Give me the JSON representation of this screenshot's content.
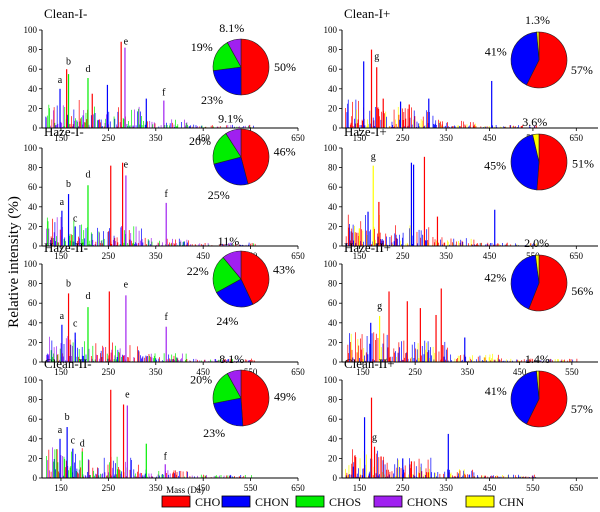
{
  "figure": {
    "y_axis_label": "Relative intensity (%)",
    "x_axis_label": "Mass (Da)",
    "legend": [
      {
        "label": "CHO",
        "color": "#ff0000"
      },
      {
        "label": "CHON",
        "color": "#0000ff"
      },
      {
        "label": "CHOS",
        "color": "#00ee00"
      },
      {
        "label": "CHONS",
        "color": "#a020f0"
      },
      {
        "label": "CHN",
        "color": "#ffff00"
      }
    ]
  },
  "chart_data": [
    {
      "type": "bar",
      "title": "Clean-I-",
      "ylim": [
        0,
        100
      ],
      "yticks": [
        0,
        20,
        40,
        60,
        80,
        100
      ],
      "xlim": [
        110,
        650
      ],
      "xticks": [
        150,
        250,
        350,
        450,
        550,
        650
      ],
      "peak_labels": [
        {
          "text": "a",
          "x": 148,
          "y": 44
        },
        {
          "text": "b",
          "x": 166,
          "y": 63
        },
        {
          "text": "d",
          "x": 207,
          "y": 55
        },
        {
          "text": "e",
          "x": 287,
          "y": 83
        },
        {
          "text": "f",
          "x": 367,
          "y": 31
        }
      ],
      "major_peaks": [
        {
          "x": 148,
          "y": 40,
          "class": "CHON"
        },
        {
          "x": 162,
          "y": 60,
          "class": "CHO"
        },
        {
          "x": 166,
          "y": 55,
          "class": "CHOS"
        },
        {
          "x": 207,
          "y": 51,
          "class": "CHOS"
        },
        {
          "x": 216,
          "y": 35,
          "class": "CHO"
        },
        {
          "x": 248,
          "y": 44,
          "class": "CHON"
        },
        {
          "x": 277,
          "y": 88,
          "class": "CHO"
        },
        {
          "x": 285,
          "y": 82,
          "class": "CHONS"
        },
        {
          "x": 330,
          "y": 30,
          "class": "CHON"
        },
        {
          "x": 367,
          "y": 28,
          "class": "CHONS"
        }
      ],
      "pie": [
        {
          "class": "CHO",
          "value": 50,
          "label": "50%"
        },
        {
          "class": "CHON",
          "value": 23,
          "label": "23%"
        },
        {
          "class": "CHOS",
          "value": 19,
          "label": "19%"
        },
        {
          "class": "CHONS",
          "value": 8.1,
          "label": "8.1%"
        }
      ]
    },
    {
      "type": "bar",
      "title": "Clean-I+",
      "ylim": [
        0,
        100
      ],
      "yticks": [
        0,
        20,
        40,
        60,
        80,
        100
      ],
      "xlim": [
        110,
        700
      ],
      "xticks": [
        150,
        250,
        350,
        450,
        550,
        650
      ],
      "peak_labels": [
        {
          "text": "g",
          "x": 190,
          "y": 68
        }
      ],
      "major_peaks": [
        {
          "x": 160,
          "y": 68,
          "class": "CHON"
        },
        {
          "x": 178,
          "y": 80,
          "class": "CHO"
        },
        {
          "x": 190,
          "y": 62,
          "class": "CHO"
        },
        {
          "x": 205,
          "y": 30,
          "class": "CHO"
        },
        {
          "x": 245,
          "y": 27,
          "class": "CHON"
        },
        {
          "x": 265,
          "y": 24,
          "class": "CHO"
        },
        {
          "x": 310,
          "y": 30,
          "class": "CHON"
        },
        {
          "x": 455,
          "y": 48,
          "class": "CHON"
        }
      ],
      "pie": [
        {
          "class": "CHO",
          "value": 57,
          "label": "57%"
        },
        {
          "class": "CHON",
          "value": 41,
          "label": "41%"
        },
        {
          "class": "CHN",
          "value": 1.3,
          "label": "1.3%"
        }
      ]
    },
    {
      "type": "bar",
      "title": "Haze-I-",
      "ylim": [
        0,
        100
      ],
      "yticks": [
        0,
        20,
        40,
        60,
        80,
        100
      ],
      "xlim": [
        110,
        650
      ],
      "xticks": [
        150,
        250,
        350,
        450,
        550,
        650
      ],
      "peak_labels": [
        {
          "text": "a",
          "x": 152,
          "y": 40
        },
        {
          "text": "b",
          "x": 166,
          "y": 58
        },
        {
          "text": "c",
          "x": 180,
          "y": 23
        },
        {
          "text": "d",
          "x": 207,
          "y": 68
        },
        {
          "text": "e",
          "x": 287,
          "y": 78
        },
        {
          "text": "f",
          "x": 372,
          "y": 48
        }
      ],
      "major_peaks": [
        {
          "x": 152,
          "y": 36,
          "class": "CHON"
        },
        {
          "x": 166,
          "y": 53,
          "class": "CHON"
        },
        {
          "x": 180,
          "y": 20,
          "class": "CHON"
        },
        {
          "x": 207,
          "y": 62,
          "class": "CHOS"
        },
        {
          "x": 255,
          "y": 82,
          "class": "CHO"
        },
        {
          "x": 280,
          "y": 85,
          "class": "CHO"
        },
        {
          "x": 287,
          "y": 72,
          "class": "CHONS"
        },
        {
          "x": 372,
          "y": 44,
          "class": "CHONS"
        }
      ],
      "pie": [
        {
          "class": "CHO",
          "value": 46,
          "label": "46%"
        },
        {
          "class": "CHON",
          "value": 25,
          "label": "25%"
        },
        {
          "class": "CHOS",
          "value": 20,
          "label": "20%"
        },
        {
          "class": "CHONS",
          "value": 9.1,
          "label": "9.1%"
        }
      ]
    },
    {
      "type": "bar",
      "title": "Haze-I+",
      "ylim": [
        0,
        100
      ],
      "yticks": [
        0,
        20,
        40,
        60,
        80,
        100
      ],
      "xlim": [
        110,
        700
      ],
      "xticks": [
        150,
        250,
        350,
        450,
        550,
        650
      ],
      "peak_labels": [
        {
          "text": "g",
          "x": 182,
          "y": 86
        }
      ],
      "major_peaks": [
        {
          "x": 150,
          "y": 18,
          "class": "CHN"
        },
        {
          "x": 170,
          "y": 35,
          "class": "CHON"
        },
        {
          "x": 182,
          "y": 82,
          "class": "CHN"
        },
        {
          "x": 195,
          "y": 45,
          "class": "CHO"
        },
        {
          "x": 270,
          "y": 85,
          "class": "CHON"
        },
        {
          "x": 275,
          "y": 83,
          "class": "CHON"
        },
        {
          "x": 300,
          "y": 91,
          "class": "CHO"
        },
        {
          "x": 330,
          "y": 30,
          "class": "CHO"
        },
        {
          "x": 462,
          "y": 37,
          "class": "CHON"
        }
      ],
      "pie": [
        {
          "class": "CHO",
          "value": 51,
          "label": "51%"
        },
        {
          "class": "CHON",
          "value": 45,
          "label": "45%"
        },
        {
          "class": "CHN",
          "value": 3.6,
          "label": "3.6%"
        }
      ]
    },
    {
      "type": "bar",
      "title": "Haze-II-",
      "ylim": [
        0,
        100
      ],
      "yticks": [
        0,
        20,
        40,
        60,
        80,
        100
      ],
      "xlim": [
        110,
        650
      ],
      "xticks": [
        150,
        250,
        350,
        450,
        550,
        650
      ],
      "peak_labels": [
        {
          "text": "a",
          "x": 152,
          "y": 42
        },
        {
          "text": "b",
          "x": 166,
          "y": 75
        },
        {
          "text": "c",
          "x": 180,
          "y": 34
        },
        {
          "text": "d",
          "x": 207,
          "y": 62
        },
        {
          "text": "e",
          "x": 287,
          "y": 74
        },
        {
          "text": "f",
          "x": 372,
          "y": 41
        }
      ],
      "major_peaks": [
        {
          "x": 152,
          "y": 38,
          "class": "CHON"
        },
        {
          "x": 166,
          "y": 70,
          "class": "CHO"
        },
        {
          "x": 180,
          "y": 30,
          "class": "CHON"
        },
        {
          "x": 207,
          "y": 56,
          "class": "CHOS"
        },
        {
          "x": 252,
          "y": 72,
          "class": "CHO"
        },
        {
          "x": 287,
          "y": 68,
          "class": "CHONS"
        },
        {
          "x": 372,
          "y": 36,
          "class": "CHONS"
        }
      ],
      "pie": [
        {
          "class": "CHO",
          "value": 43,
          "label": "43%"
        },
        {
          "class": "CHON",
          "value": 24,
          "label": "24%"
        },
        {
          "class": "CHOS",
          "value": 22,
          "label": "22%"
        },
        {
          "class": "CHONS",
          "value": 11,
          "label": "11%"
        }
      ]
    },
    {
      "type": "bar",
      "title": "Haze-II+",
      "ylim": [
        0,
        100
      ],
      "yticks": [
        0,
        20,
        40,
        60,
        80,
        100
      ],
      "xlim": [
        110,
        600
      ],
      "xticks": [
        150,
        250,
        350,
        450,
        550
      ],
      "peak_labels": [
        {
          "text": "g",
          "x": 182,
          "y": 52
        }
      ],
      "major_peaks": [
        {
          "x": 165,
          "y": 40,
          "class": "CHON"
        },
        {
          "x": 182,
          "y": 47,
          "class": "CHN"
        },
        {
          "x": 200,
          "y": 72,
          "class": "CHO"
        },
        {
          "x": 235,
          "y": 62,
          "class": "CHO"
        },
        {
          "x": 260,
          "y": 55,
          "class": "CHO"
        },
        {
          "x": 290,
          "y": 48,
          "class": "CHO"
        },
        {
          "x": 300,
          "y": 75,
          "class": "CHO"
        },
        {
          "x": 345,
          "y": 25,
          "class": "CHON"
        }
      ],
      "pie": [
        {
          "class": "CHO",
          "value": 56,
          "label": "56%"
        },
        {
          "class": "CHON",
          "value": 42,
          "label": "42%"
        },
        {
          "class": "CHN",
          "value": 2.0,
          "label": "2.0%"
        }
      ]
    },
    {
      "type": "bar",
      "title": "Clean-II-",
      "ylim": [
        0,
        100
      ],
      "yticks": [
        0,
        20,
        40,
        60,
        80,
        100
      ],
      "xlim": [
        110,
        650
      ],
      "xticks": [
        150,
        250,
        350,
        450,
        550,
        650
      ],
      "peak_labels": [
        {
          "text": "a",
          "x": 148,
          "y": 44
        },
        {
          "text": "b",
          "x": 163,
          "y": 57
        },
        {
          "text": "c",
          "x": 175,
          "y": 33
        },
        {
          "text": "d",
          "x": 195,
          "y": 30
        },
        {
          "text": "e",
          "x": 290,
          "y": 80
        },
        {
          "text": "f",
          "x": 370,
          "y": 17
        }
      ],
      "major_peaks": [
        {
          "x": 148,
          "y": 40,
          "class": "CHON"
        },
        {
          "x": 163,
          "y": 52,
          "class": "CHON"
        },
        {
          "x": 175,
          "y": 30,
          "class": "CHON"
        },
        {
          "x": 195,
          "y": 27,
          "class": "CHOS"
        },
        {
          "x": 255,
          "y": 90,
          "class": "CHO"
        },
        {
          "x": 282,
          "y": 75,
          "class": "CHO"
        },
        {
          "x": 290,
          "y": 74,
          "class": "CHONS"
        },
        {
          "x": 330,
          "y": 35,
          "class": "CHOS"
        },
        {
          "x": 370,
          "y": 14,
          "class": "CHONS"
        }
      ],
      "pie": [
        {
          "class": "CHO",
          "value": 49,
          "label": "49%"
        },
        {
          "class": "CHON",
          "value": 23,
          "label": "23%"
        },
        {
          "class": "CHOS",
          "value": 20,
          "label": "20%"
        },
        {
          "class": "CHONS",
          "value": 8.1,
          "label": "8.1%"
        }
      ]
    },
    {
      "type": "bar",
      "title": "Clean-II+",
      "ylim": [
        0,
        100
      ],
      "yticks": [
        0,
        20,
        40,
        60,
        80,
        100
      ],
      "xlim": [
        110,
        700
      ],
      "xticks": [
        150,
        250,
        350,
        450,
        550,
        650
      ],
      "peak_labels": [
        {
          "text": "g",
          "x": 185,
          "y": 36
        }
      ],
      "major_peaks": [
        {
          "x": 162,
          "y": 62,
          "class": "CHON"
        },
        {
          "x": 178,
          "y": 82,
          "class": "CHO"
        },
        {
          "x": 185,
          "y": 32,
          "class": "CHO"
        },
        {
          "x": 200,
          "y": 22,
          "class": "CHO"
        },
        {
          "x": 250,
          "y": 20,
          "class": "CHON"
        },
        {
          "x": 270,
          "y": 17,
          "class": "CHO"
        },
        {
          "x": 355,
          "y": 45,
          "class": "CHON"
        }
      ],
      "pie": [
        {
          "class": "CHO",
          "value": 57,
          "label": "57%"
        },
        {
          "class": "CHON",
          "value": 41,
          "label": "41%"
        },
        {
          "class": "CHN",
          "value": 1.4,
          "label": "1.4%"
        }
      ]
    }
  ]
}
